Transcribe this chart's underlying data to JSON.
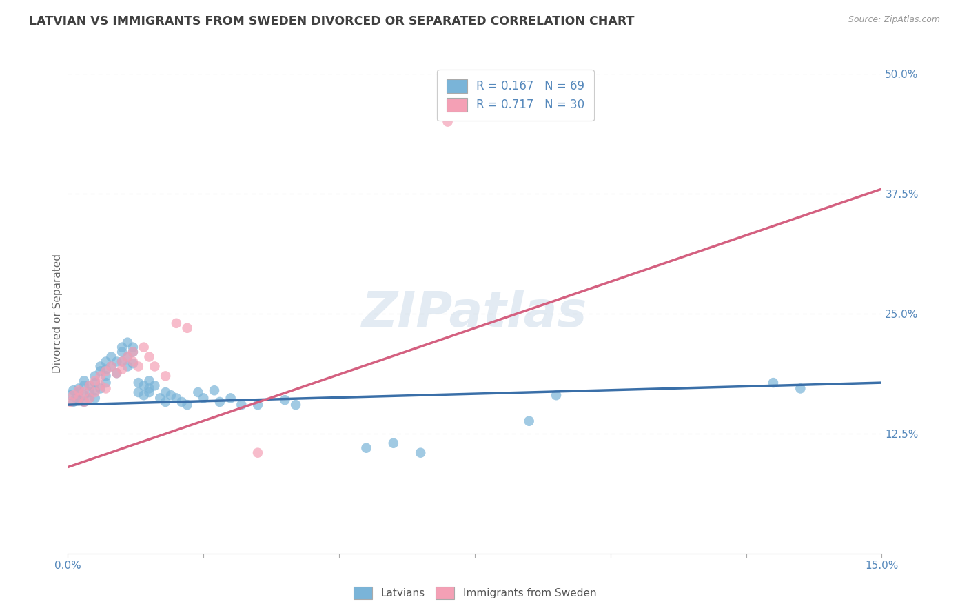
{
  "title": "LATVIAN VS IMMIGRANTS FROM SWEDEN DIVORCED OR SEPARATED CORRELATION CHART",
  "source_text": "Source: ZipAtlas.com",
  "ylabel": "Divorced or Separated",
  "xlim": [
    0.0,
    0.15
  ],
  "ylim": [
    0.0,
    0.5
  ],
  "blue_scatter_x": [
    0.0005,
    0.001,
    0.001,
    0.0015,
    0.002,
    0.002,
    0.002,
    0.003,
    0.003,
    0.003,
    0.003,
    0.004,
    0.004,
    0.004,
    0.005,
    0.005,
    0.005,
    0.005,
    0.006,
    0.006,
    0.006,
    0.007,
    0.007,
    0.007,
    0.007,
    0.008,
    0.008,
    0.009,
    0.009,
    0.01,
    0.01,
    0.01,
    0.011,
    0.011,
    0.011,
    0.012,
    0.012,
    0.012,
    0.013,
    0.013,
    0.014,
    0.014,
    0.015,
    0.015,
    0.015,
    0.016,
    0.017,
    0.018,
    0.018,
    0.019,
    0.02,
    0.021,
    0.022,
    0.024,
    0.025,
    0.027,
    0.028,
    0.03,
    0.032,
    0.035,
    0.04,
    0.042,
    0.055,
    0.06,
    0.065,
    0.085,
    0.09,
    0.13,
    0.135
  ],
  "blue_scatter_y": [
    0.165,
    0.17,
    0.158,
    0.162,
    0.168,
    0.16,
    0.172,
    0.165,
    0.175,
    0.158,
    0.18,
    0.168,
    0.175,
    0.162,
    0.178,
    0.17,
    0.185,
    0.162,
    0.19,
    0.172,
    0.195,
    0.2,
    0.185,
    0.192,
    0.178,
    0.205,
    0.195,
    0.2,
    0.188,
    0.21,
    0.2,
    0.215,
    0.205,
    0.195,
    0.22,
    0.21,
    0.198,
    0.215,
    0.168,
    0.178,
    0.175,
    0.165,
    0.172,
    0.168,
    0.18,
    0.175,
    0.162,
    0.168,
    0.158,
    0.165,
    0.162,
    0.158,
    0.155,
    0.168,
    0.162,
    0.17,
    0.158,
    0.162,
    0.155,
    0.155,
    0.16,
    0.155,
    0.11,
    0.115,
    0.105,
    0.138,
    0.165,
    0.178,
    0.172
  ],
  "pink_scatter_x": [
    0.0005,
    0.001,
    0.002,
    0.002,
    0.003,
    0.003,
    0.004,
    0.004,
    0.005,
    0.005,
    0.006,
    0.006,
    0.007,
    0.007,
    0.008,
    0.009,
    0.01,
    0.01,
    0.011,
    0.012,
    0.012,
    0.013,
    0.014,
    0.015,
    0.016,
    0.018,
    0.02,
    0.022,
    0.035,
    0.07
  ],
  "pink_scatter_y": [
    0.158,
    0.165,
    0.162,
    0.17,
    0.168,
    0.158,
    0.175,
    0.162,
    0.18,
    0.168,
    0.185,
    0.175,
    0.19,
    0.172,
    0.195,
    0.188,
    0.2,
    0.192,
    0.205,
    0.2,
    0.21,
    0.195,
    0.215,
    0.205,
    0.195,
    0.185,
    0.24,
    0.235,
    0.105,
    0.45
  ],
  "blue_line_x": [
    0.0,
    0.15
  ],
  "blue_line_y": [
    0.155,
    0.178
  ],
  "pink_line_x": [
    0.0,
    0.15
  ],
  "pink_line_y": [
    0.09,
    0.38
  ],
  "watermark": "ZIPatlas",
  "background_color": "#ffffff",
  "grid_color": "#cccccc",
  "blue_color": "#7ab4d8",
  "pink_color": "#f4a0b5",
  "blue_line_color": "#3a6fa8",
  "pink_line_color": "#d46080",
  "title_color": "#404040",
  "axis_label_color": "#5588bb",
  "tick_color": "#5588bb",
  "legend_entries": [
    {
      "label": "R = 0.167   N = 69",
      "color": "#7ab4d8"
    },
    {
      "label": "R = 0.717   N = 30",
      "color": "#f4a0b5"
    }
  ],
  "legend_categories": [
    {
      "label": "Latvians",
      "color": "#7ab4d8"
    },
    {
      "label": "Immigrants from Sweden",
      "color": "#f4a0b5"
    }
  ]
}
